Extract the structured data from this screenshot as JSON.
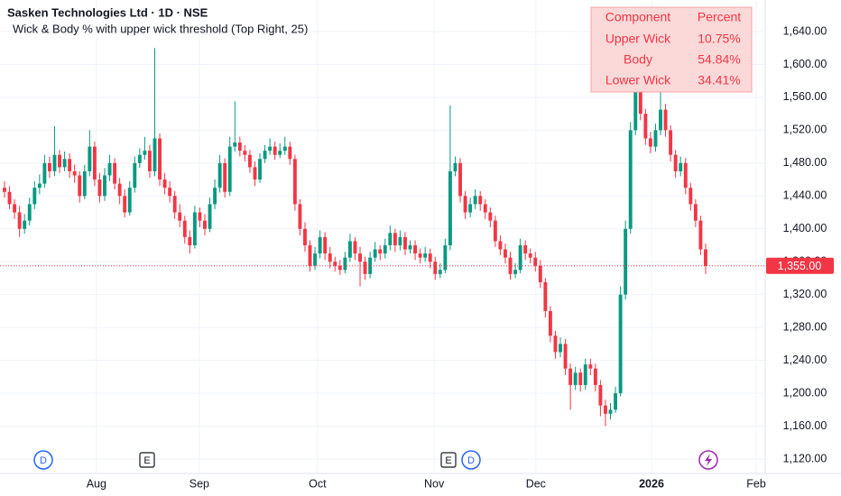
{
  "chart_data": {
    "type": "candlestick",
    "title": "Sasken Technologies Ltd · 1D · NSE",
    "subtitle": "Wick & Body % with upper wick threshold (Top Right, 25)",
    "up_color": "#089981",
    "down_color": "#f23645",
    "ylim": [
      1102.4,
      1678.4
    ],
    "yticks": [
      {
        "value": 1120,
        "label": "1,120.00"
      },
      {
        "value": 1160,
        "label": "1,160.00"
      },
      {
        "value": 1200,
        "label": "1,200.00"
      },
      {
        "value": 1240,
        "label": "1,240.00"
      },
      {
        "value": 1280,
        "label": "1,280.00"
      },
      {
        "value": 1320,
        "label": "1,320.00"
      },
      {
        "value": 1360,
        "label": "1,360.00"
      },
      {
        "value": 1400,
        "label": "1,400.00"
      },
      {
        "value": 1440,
        "label": "1,440.00"
      },
      {
        "value": 1480,
        "label": "1,480.00"
      },
      {
        "value": 1520,
        "label": "1,520.00"
      },
      {
        "value": 1560,
        "label": "1,560.00"
      },
      {
        "value": 1600,
        "label": "1,600.00"
      },
      {
        "value": 1640,
        "label": "1,640.00"
      }
    ],
    "xlim": [
      -0.9,
      151.9
    ],
    "xticks": [
      {
        "value": 18.35,
        "label": "Aug"
      },
      {
        "value": 38.9,
        "label": "Sep"
      },
      {
        "value": 62.5,
        "label": "Oct"
      },
      {
        "value": 85.8,
        "label": "Nov"
      },
      {
        "value": 106.1,
        "label": "Dec"
      },
      {
        "value": 129.2,
        "label": "2026"
      },
      {
        "value": 150.1,
        "label": "Feb"
      }
    ],
    "grid": true,
    "last_price": {
      "value": 1355,
      "label": "1,355.00"
    },
    "events": [
      "D",
      "E",
      "E",
      "D"
    ],
    "table": {
      "header": [
        "Component",
        "Percent"
      ],
      "rows": [
        [
          "Upper Wick",
          "10.75%"
        ],
        [
          "Body",
          "54.84%"
        ],
        [
          "Lower Wick",
          "34.41%"
        ]
      ]
    },
    "candles": [
      [
        1450,
        1458,
        1438,
        1445
      ],
      [
        1445,
        1452,
        1424,
        1430
      ],
      [
        1430,
        1436,
        1412,
        1420
      ],
      [
        1420,
        1428,
        1390,
        1400
      ],
      [
        1400,
        1418,
        1394,
        1410
      ],
      [
        1410,
        1438,
        1404,
        1430
      ],
      [
        1430,
        1458,
        1424,
        1450
      ],
      [
        1450,
        1466,
        1442,
        1455
      ],
      [
        1455,
        1490,
        1450,
        1480
      ],
      [
        1480,
        1488,
        1462,
        1470
      ],
      [
        1470,
        1525,
        1464,
        1490
      ],
      [
        1490,
        1496,
        1468,
        1475
      ],
      [
        1475,
        1494,
        1470,
        1485
      ],
      [
        1485,
        1492,
        1462,
        1470
      ],
      [
        1470,
        1478,
        1456,
        1465
      ],
      [
        1465,
        1470,
        1432,
        1440
      ],
      [
        1440,
        1478,
        1436,
        1470
      ],
      [
        1470,
        1520,
        1464,
        1500
      ],
      [
        1500,
        1506,
        1452,
        1460
      ],
      [
        1460,
        1468,
        1432,
        1440
      ],
      [
        1440,
        1474,
        1434,
        1465
      ],
      [
        1465,
        1490,
        1458,
        1480
      ],
      [
        1480,
        1486,
        1448,
        1455
      ],
      [
        1455,
        1462,
        1430,
        1440
      ],
      [
        1440,
        1448,
        1414,
        1420
      ],
      [
        1420,
        1458,
        1416,
        1450
      ],
      [
        1450,
        1488,
        1444,
        1480
      ],
      [
        1480,
        1498,
        1474,
        1490
      ],
      [
        1490,
        1512,
        1484,
        1495
      ],
      [
        1495,
        1502,
        1462,
        1470
      ],
      [
        1470,
        1620,
        1464,
        1510
      ],
      [
        1510,
        1516,
        1452,
        1460
      ],
      [
        1460,
        1468,
        1442,
        1450
      ],
      [
        1450,
        1458,
        1432,
        1440
      ],
      [
        1440,
        1446,
        1412,
        1420
      ],
      [
        1420,
        1430,
        1402,
        1410
      ],
      [
        1410,
        1416,
        1382,
        1390
      ],
      [
        1390,
        1398,
        1370,
        1380
      ],
      [
        1380,
        1428,
        1376,
        1420
      ],
      [
        1420,
        1426,
        1402,
        1410
      ],
      [
        1410,
        1418,
        1392,
        1400
      ],
      [
        1400,
        1438,
        1396,
        1430
      ],
      [
        1430,
        1460,
        1424,
        1450
      ],
      [
        1450,
        1490,
        1444,
        1480
      ],
      [
        1480,
        1486,
        1438,
        1445
      ],
      [
        1445,
        1512,
        1440,
        1500
      ],
      [
        1500,
        1555,
        1494,
        1505
      ],
      [
        1505,
        1512,
        1488,
        1495
      ],
      [
        1495,
        1502,
        1482,
        1490
      ],
      [
        1490,
        1496,
        1468,
        1475
      ],
      [
        1475,
        1482,
        1452,
        1460
      ],
      [
        1460,
        1492,
        1456,
        1485
      ],
      [
        1485,
        1502,
        1480,
        1495
      ],
      [
        1495,
        1510,
        1490,
        1500
      ],
      [
        1500,
        1506,
        1484,
        1490
      ],
      [
        1490,
        1504,
        1486,
        1495
      ],
      [
        1495,
        1512,
        1490,
        1500
      ],
      [
        1500,
        1506,
        1478,
        1485
      ],
      [
        1485,
        1490,
        1422,
        1430
      ],
      [
        1430,
        1436,
        1392,
        1400
      ],
      [
        1400,
        1408,
        1372,
        1380
      ],
      [
        1380,
        1386,
        1348,
        1355
      ],
      [
        1355,
        1378,
        1350,
        1370
      ],
      [
        1370,
        1398,
        1364,
        1390
      ],
      [
        1390,
        1396,
        1362,
        1370
      ],
      [
        1370,
        1378,
        1352,
        1360
      ],
      [
        1360,
        1366,
        1348,
        1355
      ],
      [
        1355,
        1362,
        1344,
        1350
      ],
      [
        1350,
        1372,
        1346,
        1365
      ],
      [
        1365,
        1394,
        1360,
        1385
      ],
      [
        1385,
        1390,
        1362,
        1370
      ],
      [
        1370,
        1378,
        1330,
        1360
      ],
      [
        1360,
        1366,
        1338,
        1345
      ],
      [
        1345,
        1372,
        1340,
        1365
      ],
      [
        1365,
        1384,
        1360,
        1375
      ],
      [
        1375,
        1380,
        1362,
        1370
      ],
      [
        1370,
        1388,
        1364,
        1380
      ],
      [
        1380,
        1404,
        1374,
        1395
      ],
      [
        1395,
        1400,
        1372,
        1380
      ],
      [
        1380,
        1398,
        1374,
        1390
      ],
      [
        1390,
        1396,
        1368,
        1375
      ],
      [
        1375,
        1386,
        1370,
        1380
      ],
      [
        1380,
        1386,
        1362,
        1370
      ],
      [
        1370,
        1376,
        1358,
        1365
      ],
      [
        1365,
        1378,
        1360,
        1370
      ],
      [
        1370,
        1376,
        1352,
        1360
      ],
      [
        1360,
        1366,
        1338,
        1345
      ],
      [
        1345,
        1358,
        1340,
        1350
      ],
      [
        1350,
        1388,
        1346,
        1380
      ],
      [
        1380,
        1550,
        1374,
        1470
      ],
      [
        1470,
        1488,
        1464,
        1480
      ],
      [
        1480,
        1486,
        1432,
        1440
      ],
      [
        1440,
        1446,
        1412,
        1420
      ],
      [
        1420,
        1438,
        1414,
        1430
      ],
      [
        1430,
        1448,
        1424,
        1440
      ],
      [
        1440,
        1446,
        1422,
        1430
      ],
      [
        1430,
        1436,
        1412,
        1420
      ],
      [
        1420,
        1426,
        1402,
        1410
      ],
      [
        1410,
        1416,
        1378,
        1385
      ],
      [
        1385,
        1392,
        1368,
        1375
      ],
      [
        1375,
        1382,
        1358,
        1365
      ],
      [
        1365,
        1372,
        1338,
        1345
      ],
      [
        1345,
        1358,
        1340,
        1350
      ],
      [
        1350,
        1388,
        1346,
        1380
      ],
      [
        1380,
        1386,
        1362,
        1370
      ],
      [
        1370,
        1376,
        1358,
        1365
      ],
      [
        1365,
        1372,
        1348,
        1355
      ],
      [
        1355,
        1362,
        1328,
        1335
      ],
      [
        1335,
        1340,
        1292,
        1300
      ],
      [
        1300,
        1306,
        1262,
        1270
      ],
      [
        1270,
        1276,
        1242,
        1250
      ],
      [
        1250,
        1268,
        1244,
        1260
      ],
      [
        1260,
        1266,
        1222,
        1230
      ],
      [
        1230,
        1236,
        1180,
        1210
      ],
      [
        1210,
        1232,
        1204,
        1225
      ],
      [
        1225,
        1230,
        1202,
        1210
      ],
      [
        1210,
        1242,
        1204,
        1235
      ],
      [
        1235,
        1242,
        1222,
        1230
      ],
      [
        1230,
        1236,
        1202,
        1210
      ],
      [
        1210,
        1216,
        1172,
        1185
      ],
      [
        1185,
        1192,
        1160,
        1175
      ],
      [
        1175,
        1188,
        1168,
        1180
      ],
      [
        1180,
        1208,
        1176,
        1200
      ],
      [
        1200,
        1330,
        1196,
        1320
      ],
      [
        1320,
        1410,
        1314,
        1400
      ],
      [
        1400,
        1530,
        1394,
        1520
      ],
      [
        1520,
        1585,
        1514,
        1570
      ],
      [
        1570,
        1576,
        1532,
        1540
      ],
      [
        1540,
        1546,
        1502,
        1510
      ],
      [
        1510,
        1518,
        1492,
        1500
      ],
      [
        1500,
        1528,
        1494,
        1520
      ],
      [
        1520,
        1570,
        1514,
        1545
      ],
      [
        1545,
        1552,
        1512,
        1520
      ],
      [
        1520,
        1526,
        1482,
        1490
      ],
      [
        1490,
        1496,
        1462,
        1470
      ],
      [
        1470,
        1488,
        1464,
        1480
      ],
      [
        1480,
        1486,
        1442,
        1450
      ],
      [
        1450,
        1456,
        1422,
        1430
      ],
      [
        1430,
        1436,
        1402,
        1410
      ],
      [
        1410,
        1416,
        1368,
        1375
      ],
      [
        1375,
        1382,
        1345,
        1355
      ]
    ]
  }
}
